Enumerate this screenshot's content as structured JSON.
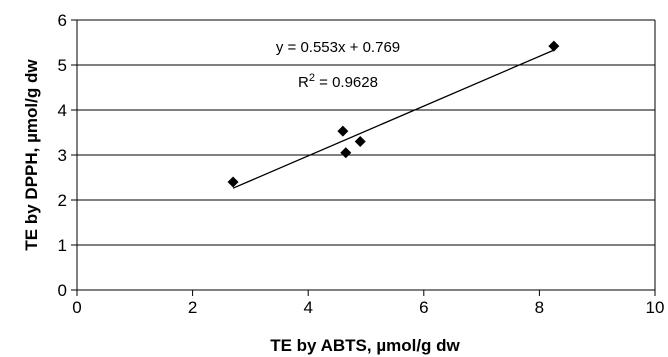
{
  "chart_data": {
    "type": "scatter",
    "xlabel": "TE by ABTS, µmol/g dw",
    "ylabel": "TE by DPPH, µmol/g dw",
    "xlim": [
      0,
      10
    ],
    "ylim": [
      0,
      6
    ],
    "x_ticks": [
      "0",
      "2",
      "4",
      "6",
      "8",
      "10"
    ],
    "y_ticks": [
      "0",
      "1",
      "2",
      "3",
      "4",
      "5",
      "6"
    ],
    "grid": "horizontal",
    "series": [
      {
        "marker": "diamond",
        "color": "#000000",
        "points": [
          {
            "x": 2.7,
            "y": 2.4
          },
          {
            "x": 4.6,
            "y": 3.53
          },
          {
            "x": 4.65,
            "y": 3.05
          },
          {
            "x": 4.9,
            "y": 3.3
          },
          {
            "x": 8.25,
            "y": 5.42
          }
        ]
      }
    ],
    "trendline": {
      "slope": 0.553,
      "intercept": 0.769,
      "x_range": [
        2.7,
        8.25
      ],
      "equation": "y = 0.553x + 0.769",
      "r2_prefix": "R",
      "r2_sup": "2",
      "r2_value": " = 0.9628"
    }
  }
}
